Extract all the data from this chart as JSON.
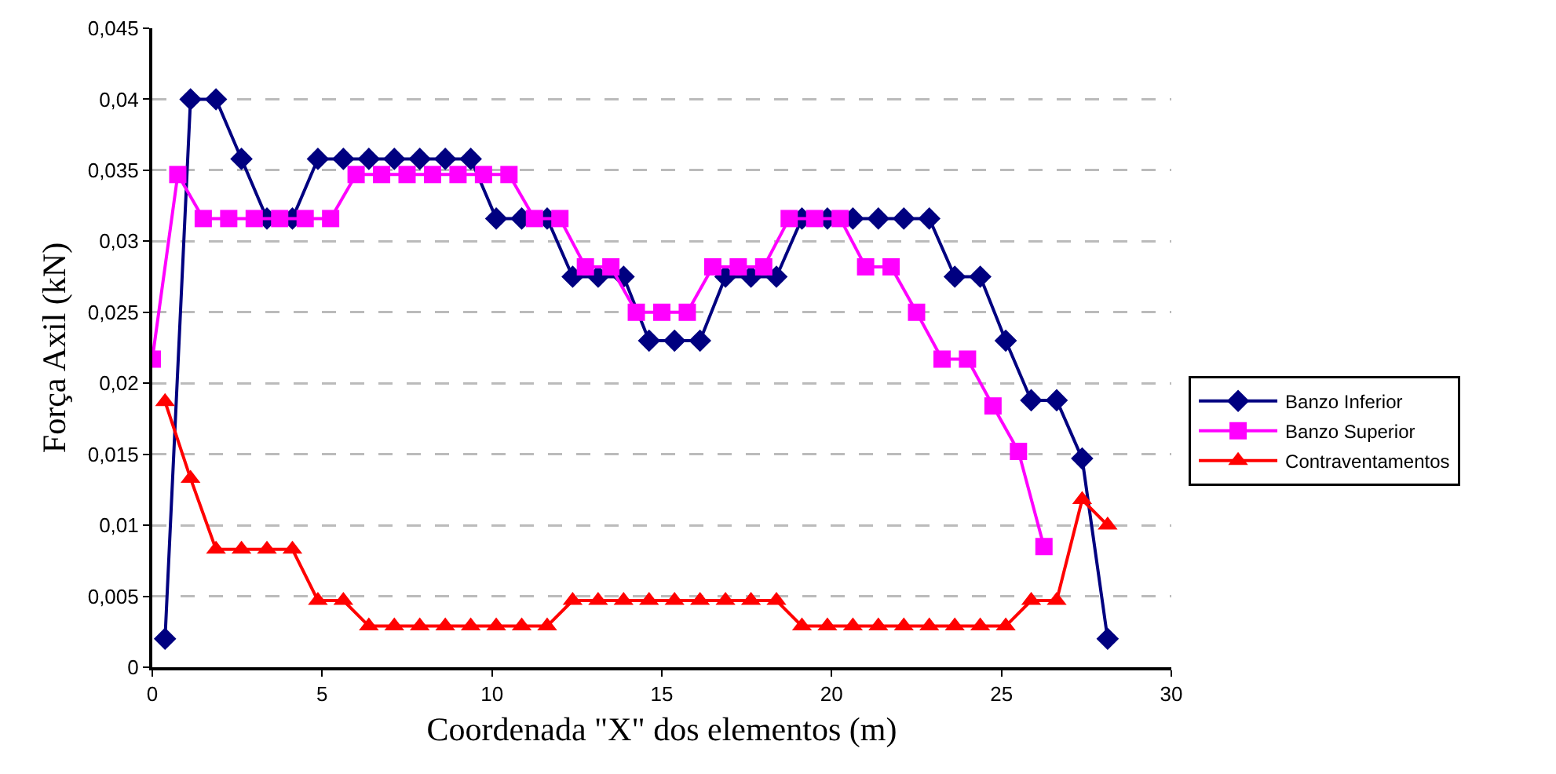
{
  "chart_data": {
    "type": "line",
    "xlabel": "Coordenada \"X\" dos elementos (m)",
    "ylabel": "Força Axil (kN)",
    "xlim": [
      0,
      30
    ],
    "xticks": [
      0,
      5,
      10,
      15,
      20,
      25,
      30
    ],
    "ylim": [
      0,
      0.045
    ],
    "yticks": [
      {
        "value": 0,
        "label": "0"
      },
      {
        "value": 0.005,
        "label": "0,005"
      },
      {
        "value": 0.01,
        "label": "0,01"
      },
      {
        "value": 0.015,
        "label": "0,015"
      },
      {
        "value": 0.02,
        "label": "0,02"
      },
      {
        "value": 0.025,
        "label": "0,025"
      },
      {
        "value": 0.03,
        "label": "0,03"
      },
      {
        "value": 0.035,
        "label": "0,035"
      },
      {
        "value": 0.04,
        "label": "0,04"
      },
      {
        "value": 0.045,
        "label": "0,045"
      }
    ],
    "grid": "y",
    "legend": "right",
    "line_style": "solid",
    "series": [
      {
        "name": "Banzo Inferior",
        "color": "#000080",
        "marker": "diamond",
        "x": [
          0.375,
          1.125,
          1.875,
          2.625,
          3.375,
          4.125,
          4.875,
          5.625,
          6.375,
          7.125,
          7.875,
          8.625,
          9.375,
          10.125,
          10.875,
          11.625,
          12.375,
          13.125,
          13.875,
          14.625,
          15.375,
          16.125,
          16.875,
          17.625,
          18.375,
          19.125,
          19.875,
          20.625,
          21.375,
          22.125,
          22.875,
          23.625,
          24.375,
          25.125,
          25.875,
          26.625,
          27.375,
          28.125
        ],
        "values": [
          0.002,
          0.04,
          0.04,
          0.0358,
          0.0316,
          0.0316,
          0.0358,
          0.0358,
          0.0358,
          0.0358,
          0.0358,
          0.0358,
          0.0358,
          0.0316,
          0.0316,
          0.0316,
          0.0275,
          0.0275,
          0.0275,
          0.023,
          0.023,
          0.023,
          0.0275,
          0.0275,
          0.0275,
          0.0316,
          0.0316,
          0.0316,
          0.0316,
          0.0316,
          0.0316,
          0.0275,
          0.0275,
          0.023,
          0.0188,
          0.0188,
          0.0147,
          0.002
        ]
      },
      {
        "name": "Banzo Superior",
        "color": "#ff00ff",
        "marker": "square",
        "x": [
          0,
          0.75,
          1.5,
          2.25,
          3,
          3.75,
          4.5,
          5.25,
          6,
          6.75,
          7.5,
          8.25,
          9,
          9.75,
          10.5,
          11.25,
          12,
          12.75,
          13.5,
          14.25,
          15,
          15.75,
          16.5,
          17.25,
          18,
          18.75,
          19.5,
          20.25,
          21,
          21.75,
          22.5,
          23.25,
          24,
          24.75,
          25.5,
          26.25
        ],
        "values": [
          0.0217,
          0.0347,
          0.0316,
          0.0316,
          0.0316,
          0.0316,
          0.0316,
          0.0316,
          0.0347,
          0.0347,
          0.0347,
          0.0347,
          0.0347,
          0.0347,
          0.0347,
          0.0316,
          0.0316,
          0.0282,
          0.0282,
          0.025,
          0.025,
          0.025,
          0.0282,
          0.0282,
          0.0282,
          0.0316,
          0.0316,
          0.0316,
          0.0282,
          0.0282,
          0.025,
          0.0217,
          0.0217,
          0.0184,
          0.0152,
          0.0085
        ]
      },
      {
        "name": "Contraventamentos",
        "color": "#ff0000",
        "marker": "triangle",
        "x": [
          0.375,
          1.125,
          1.875,
          2.625,
          3.375,
          4.125,
          4.875,
          5.625,
          6.375,
          7.125,
          7.875,
          8.625,
          9.375,
          10.125,
          10.875,
          11.625,
          12.375,
          13.125,
          13.875,
          14.625,
          15.375,
          16.125,
          16.875,
          17.625,
          18.375,
          19.125,
          19.875,
          20.625,
          21.375,
          22.125,
          22.875,
          23.625,
          24.375,
          25.125,
          25.875,
          26.625,
          27.375,
          28.125
        ],
        "values": [
          0.0187,
          0.0133,
          0.0083,
          0.0083,
          0.0083,
          0.0083,
          0.0047,
          0.0047,
          0.0029,
          0.0029,
          0.0029,
          0.0029,
          0.0029,
          0.0029,
          0.0029,
          0.0029,
          0.0047,
          0.0047,
          0.0047,
          0.0047,
          0.0047,
          0.0047,
          0.0047,
          0.0047,
          0.0047,
          0.0029,
          0.0029,
          0.0029,
          0.0029,
          0.0029,
          0.0029,
          0.0029,
          0.0029,
          0.0029,
          0.0047,
          0.0047,
          0.0118,
          0.01
        ]
      }
    ]
  }
}
